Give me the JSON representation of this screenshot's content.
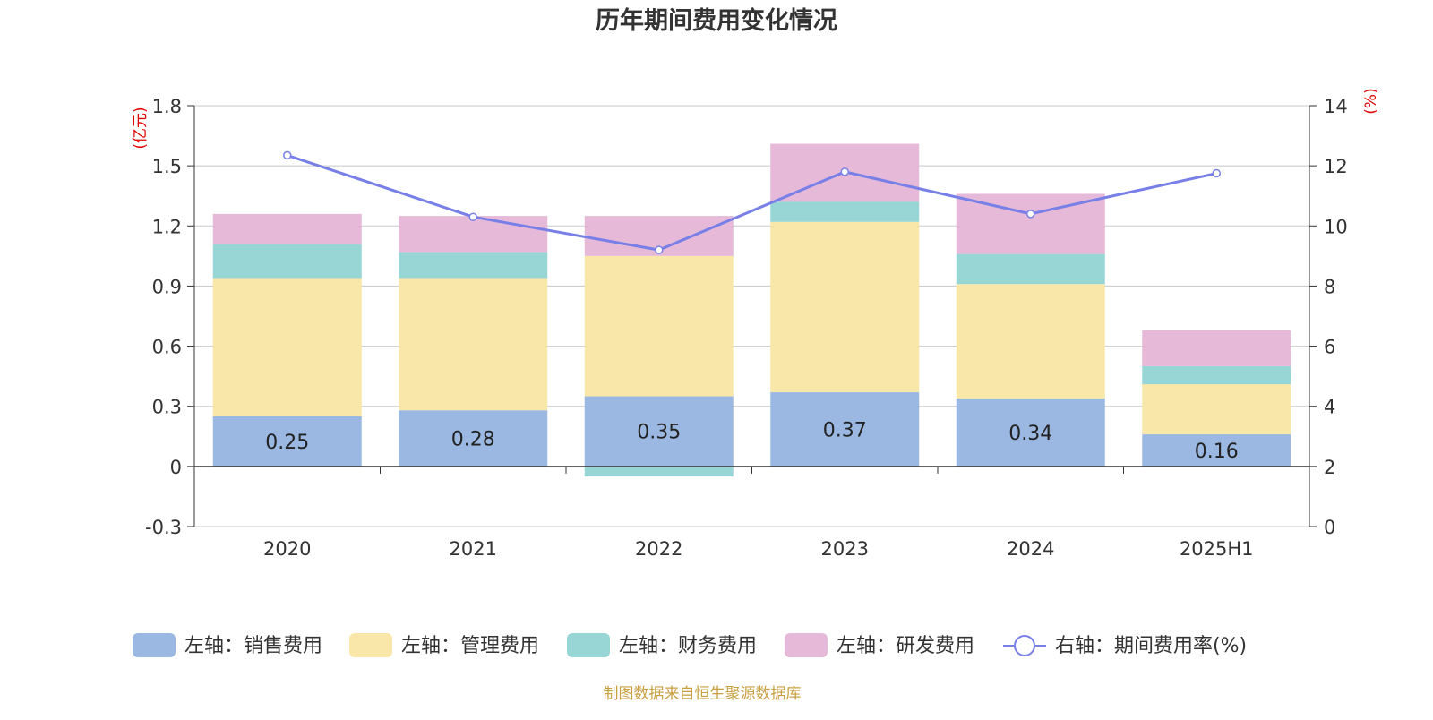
{
  "chart_data": {
    "type": "bar",
    "stacked": true,
    "title": "历年期间费用变化情况",
    "categories": [
      "2020",
      "2021",
      "2022",
      "2023",
      "2024",
      "2025H1"
    ],
    "y_left": {
      "unit_label": "(亿元)",
      "ylim": [
        -0.3,
        1.8
      ],
      "ticks": [
        "1.8",
        "1.5",
        "1.2",
        "0.9",
        "0.6",
        "0.3",
        "0",
        "-0.3"
      ]
    },
    "y_right": {
      "unit_label": "(%)",
      "ylim": [
        0,
        14
      ],
      "ticks": [
        "14",
        "12",
        "10",
        "8",
        "6",
        "4",
        "2",
        "0"
      ]
    },
    "grid": true,
    "legend_position": "bottom",
    "series": [
      {
        "name": "左轴：销售费用",
        "axis": "left",
        "type": "bar",
        "color": "#9bb8e2",
        "values": [
          0.25,
          0.28,
          0.35,
          0.37,
          0.34,
          0.16
        ],
        "labels": [
          "0.25",
          "0.28",
          "0.35",
          "0.37",
          "0.34",
          "0.16"
        ]
      },
      {
        "name": "左轴：管理费用",
        "axis": "left",
        "type": "bar",
        "color": "#f8e7a8",
        "values": [
          0.69,
          0.66,
          0.7,
          0.85,
          0.57,
          0.25
        ]
      },
      {
        "name": "左轴：财务费用",
        "axis": "left",
        "type": "bar",
        "color": "#98d5d5",
        "values": [
          0.17,
          0.13,
          -0.05,
          0.1,
          0.15,
          0.09
        ]
      },
      {
        "name": "左轴：研发费用",
        "axis": "left",
        "type": "bar",
        "color": "#e6b9d9",
        "values": [
          0.15,
          0.18,
          0.2,
          0.29,
          0.3,
          0.18
        ]
      },
      {
        "name": "右轴：期间费用率(%)",
        "axis": "right",
        "type": "line",
        "color": "#7880e8",
        "values": [
          12.35,
          10.3,
          9.2,
          11.8,
          10.4,
          11.75
        ]
      }
    ]
  },
  "footer": {
    "source": "制图数据来自恒生聚源数据库"
  },
  "colors": {
    "axis_unit": "#e00000",
    "source_text": "#c8a040",
    "grid": "#c8c8c8",
    "axis": "#333333"
  }
}
